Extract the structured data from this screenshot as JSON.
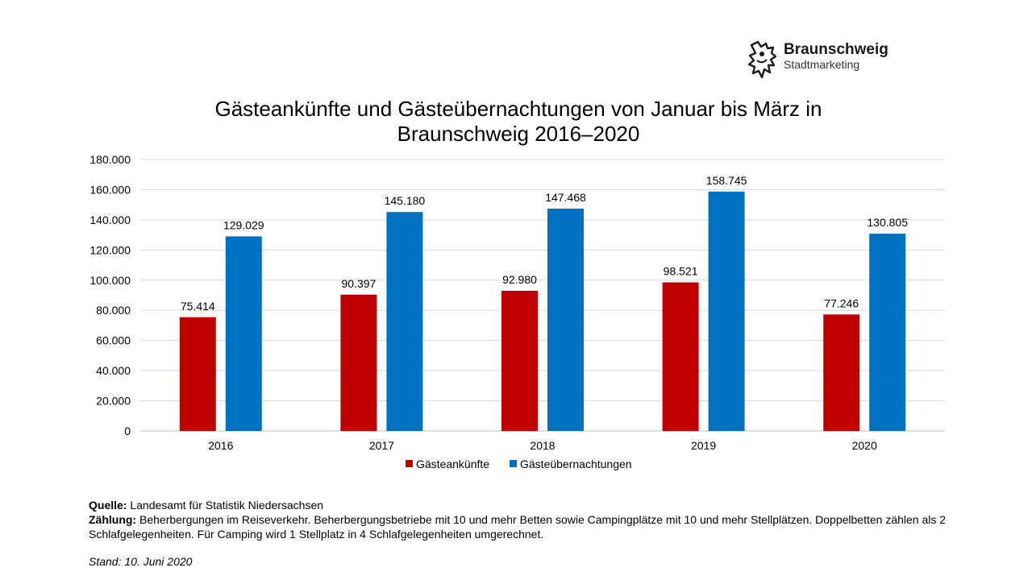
{
  "brand": {
    "name": "Braunschweig",
    "subtitle": "Stadtmarketing"
  },
  "chart_data": {
    "type": "bar",
    "title_line1": "Gästeankünfte und Gästeübernachtungen von Januar bis März in",
    "title_line2": "Braunschweig 2016–2020",
    "categories": [
      "2016",
      "2017",
      "2018",
      "2019",
      "2020"
    ],
    "series": [
      {
        "name": "Gästeankünfte",
        "color": "#C00000",
        "values": [
          75414,
          90397,
          92980,
          98521,
          77246
        ],
        "labels": [
          "75.414",
          "90.397",
          "92.980",
          "98.521",
          "77.246"
        ]
      },
      {
        "name": "Gästeübernachtungen",
        "color": "#0070C0",
        "values": [
          129029,
          145180,
          147468,
          158745,
          130805
        ],
        "labels": [
          "129.029",
          "145.180",
          "147.468",
          "158.745",
          "130.805"
        ]
      }
    ],
    "ylim": [
      0,
      180000
    ],
    "yticks": [
      "0",
      "20.000",
      "40.000",
      "60.000",
      "80.000",
      "100.000",
      "120.000",
      "140.000",
      "160.000",
      "180.000"
    ],
    "grid": true,
    "legend": "bottom"
  },
  "footer": {
    "source_label": "Quelle:",
    "source_text": " Landesamt für Statistik Niedersachsen",
    "count_label": "Zählung:",
    "count_text": " Beherbergungen im Reiseverkehr. Beherbergungsbetriebe mit 10 und mehr Betten sowie Campingplätze mit 10 und mehr Stellplätzen. Doppelbetten zählen als 2 Schlafgelegenheiten. Für Camping wird 1 Stellplatz in 4 Schlafgelegenheiten umgerechnet.",
    "stand": "Stand: 10. Juni 2020"
  }
}
